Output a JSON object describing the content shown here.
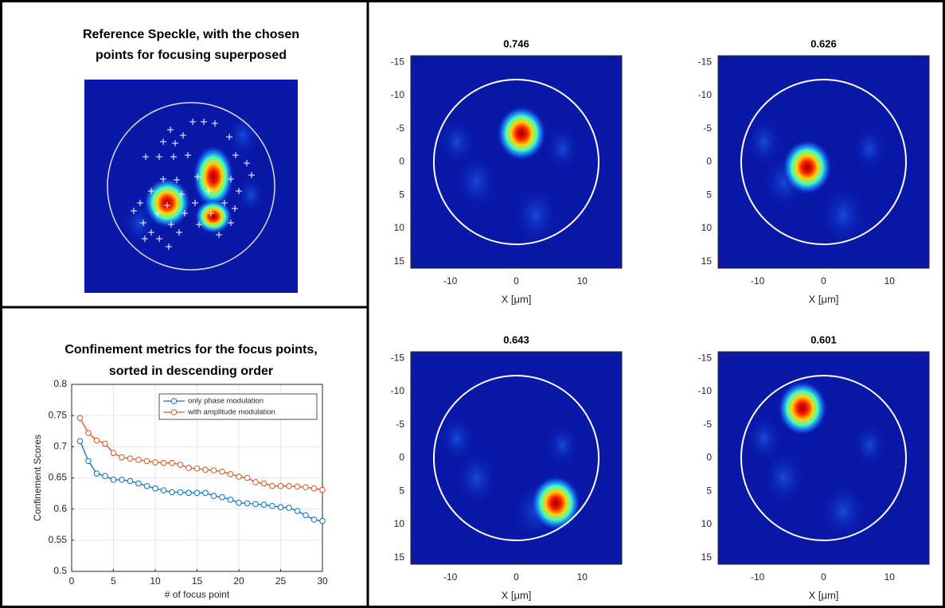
{
  "chart_data": [
    {
      "type": "image",
      "title": [
        "Reference Speckle, with the chosen",
        "points for focusing superposed"
      ]
    },
    {
      "type": "line",
      "title": [
        "Confinement metrics for the focus points,",
        "sorted in descending order"
      ],
      "xlabel": "# of focus point",
      "ylabel": "Confinement Scores",
      "x": [
        1,
        2,
        3,
        4,
        5,
        6,
        7,
        8,
        9,
        10,
        11,
        12,
        13,
        14,
        15,
        16,
        17,
        18,
        19,
        20,
        21,
        22,
        23,
        24,
        25,
        26,
        27,
        28,
        29,
        30
      ],
      "series": [
        {
          "name": "only phase modulation",
          "color": "#0072bd",
          "values": [
            0.709,
            0.677,
            0.657,
            0.653,
            0.647,
            0.647,
            0.645,
            0.641,
            0.637,
            0.633,
            0.63,
            0.627,
            0.627,
            0.626,
            0.626,
            0.626,
            0.621,
            0.619,
            0.615,
            0.61,
            0.609,
            0.608,
            0.607,
            0.605,
            0.603,
            0.602,
            0.597,
            0.59,
            0.583,
            0.581
          ]
        },
        {
          "name": "with amplitude modulation",
          "color": "#d95319",
          "values": [
            0.746,
            0.722,
            0.71,
            0.705,
            0.69,
            0.683,
            0.681,
            0.679,
            0.677,
            0.675,
            0.674,
            0.674,
            0.671,
            0.666,
            0.665,
            0.663,
            0.662,
            0.66,
            0.656,
            0.652,
            0.65,
            0.643,
            0.641,
            0.637,
            0.637,
            0.637,
            0.636,
            0.635,
            0.633,
            0.631
          ]
        }
      ],
      "xlim": [
        0,
        30
      ],
      "xticks": [
        0,
        5,
        10,
        15,
        20,
        25,
        30
      ],
      "ylim": [
        0.5,
        0.8
      ],
      "yticks": [
        0.5,
        0.55,
        0.6,
        0.65,
        0.7,
        0.75,
        0.8
      ],
      "grid": true,
      "legend": "upper right"
    },
    {
      "type": "heatmap",
      "title": "0.746",
      "xlabel": "X [μm]",
      "xlim": [
        -16,
        16
      ],
      "ylim": [
        -16,
        16
      ],
      "y_inverted": true,
      "xticks": [
        -10,
        0,
        10
      ],
      "yticks": [
        -15,
        -10,
        -5,
        0,
        5,
        10,
        15
      ],
      "circle_radius": 12.5,
      "peak": [
        0.8,
        -4.3
      ]
    },
    {
      "type": "heatmap",
      "title": "0.626",
      "xlabel": "X [μm]",
      "xlim": [
        -16,
        16
      ],
      "ylim": [
        -16,
        16
      ],
      "y_inverted": true,
      "xticks": [
        -10,
        0,
        10
      ],
      "yticks": [
        -15,
        -10,
        -5,
        0,
        5,
        10,
        15
      ],
      "circle_radius": 12.5,
      "peak": [
        -2.5,
        0.8
      ]
    },
    {
      "type": "heatmap",
      "title": "0.643",
      "xlabel": "X [μm]",
      "xlim": [
        -16,
        16
      ],
      "ylim": [
        -16,
        16
      ],
      "y_inverted": true,
      "xticks": [
        -10,
        0,
        10
      ],
      "yticks": [
        -15,
        -10,
        -5,
        0,
        5,
        10,
        15
      ],
      "circle_radius": 12.5,
      "peak": [
        6,
        6.8
      ]
    },
    {
      "type": "heatmap",
      "title": "0.601",
      "xlabel": "X [μm]",
      "xlim": [
        -16,
        16
      ],
      "ylim": [
        -16,
        16
      ],
      "y_inverted": true,
      "xticks": [
        -10,
        0,
        10
      ],
      "yticks": [
        -15,
        -10,
        -5,
        0,
        5,
        10,
        15
      ],
      "circle_radius": 12.5,
      "peak": [
        -3.2,
        -7.5
      ]
    }
  ]
}
